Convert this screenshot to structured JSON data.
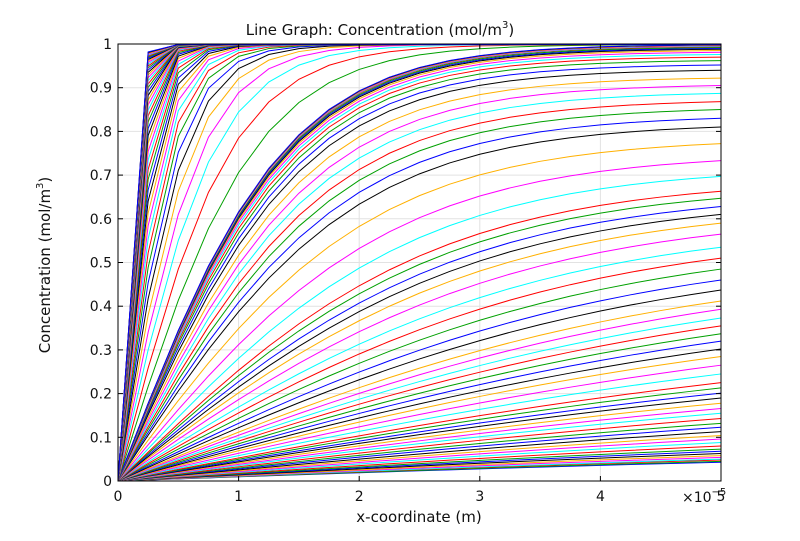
{
  "chart_data": {
    "type": "line",
    "title": "Line Graph: Concentration (mol/m",
    "title_sup": "3",
    "title_tail": ")",
    "xlabel": "x-coordinate (m)",
    "ylabel": "Concentration (mol/m",
    "ylabel_sup": "3",
    "ylabel_tail": ")",
    "x_multiplier": "×10",
    "x_multiplier_exp": "−5",
    "xlim": [
      0,
      5e-05
    ],
    "ylim": [
      0,
      1
    ],
    "xticks": [
      {
        "value": 0,
        "label": "0"
      },
      {
        "value": 1e-05,
        "label": "1"
      },
      {
        "value": 2e-05,
        "label": "2"
      },
      {
        "value": 3e-05,
        "label": "3"
      },
      {
        "value": 4e-05,
        "label": "4"
      },
      {
        "value": 5e-05,
        "label": "5"
      }
    ],
    "yticks": [
      {
        "value": 0,
        "label": "0"
      },
      {
        "value": 0.1,
        "label": "0.1"
      },
      {
        "value": 0.2,
        "label": "0.2"
      },
      {
        "value": 0.3,
        "label": "0.3"
      },
      {
        "value": 0.4,
        "label": "0.4"
      },
      {
        "value": 0.5,
        "label": "0.5"
      },
      {
        "value": 0.6,
        "label": "0.6"
      },
      {
        "value": 0.7,
        "label": "0.7"
      },
      {
        "value": 0.8,
        "label": "0.8"
      },
      {
        "value": 0.9,
        "label": "0.9"
      },
      {
        "value": 1,
        "label": "1"
      }
    ],
    "grid": true,
    "colors": [
      "#0000ff",
      "#00a000",
      "#ff0000",
      "#00ffff",
      "#ff00ff",
      "#ffb000",
      "#000000"
    ],
    "x": [
      0,
      2.5e-06,
      5e-06,
      7.5e-06,
      1e-05,
      1.25e-05,
      1.5e-05,
      1.75e-05,
      2e-05,
      2.25e-05,
      2.5e-05,
      2.75e-05,
      3e-05,
      3.25e-05,
      3.5e-05,
      3.75e-05,
      4e-05,
      4.25e-05,
      4.5e-05,
      4.75e-05,
      5e-05
    ],
    "series_end_values": [
      0.043,
      0.045,
      0.048,
      0.05,
      0.054,
      0.058,
      0.063,
      0.068,
      0.073,
      0.08,
      0.088,
      0.096,
      0.104,
      0.113,
      0.123,
      0.132,
      0.143,
      0.155,
      0.166,
      0.178,
      0.19,
      0.201,
      0.213,
      0.225,
      0.245,
      0.265,
      0.285,
      0.302,
      0.32,
      0.337,
      0.355,
      0.373,
      0.393,
      0.412,
      0.437,
      0.46,
      0.485,
      0.51,
      0.535,
      0.565,
      0.59,
      0.61,
      0.628,
      0.647,
      0.663,
      0.697,
      0.733,
      0.772,
      0.81,
      0.83,
      0.85,
      0.868,
      0.887,
      0.905,
      0.922,
      0.94,
      0.952,
      0.962,
      0.97,
      0.976,
      0.981,
      0.985,
      0.988,
      0.99,
      0.992,
      0.994,
      0.995,
      0.996,
      0.997,
      0.998,
      0.9985,
      0.999,
      0.999,
      0.999,
      0.999,
      0.999,
      0.999,
      0.999,
      0.999,
      0.999,
      0.999,
      0.999,
      0.999,
      0.999,
      0.999,
      0.999,
      0.999,
      0.999,
      0.999,
      0.999,
      0.999,
      0.999,
      0.999,
      0.999,
      0.999,
      0.999,
      0.999,
      0.999,
      0.999,
      0.999,
      0.999,
      0.999,
      0.999,
      0.999,
      0.999,
      0.999,
      0.999,
      0.999,
      0.999,
      0.999,
      0.999,
      0.999,
      0.999,
      0.999,
      0.999,
      0.999,
      0.999,
      0.999,
      0.999,
      0.999
    ]
  }
}
